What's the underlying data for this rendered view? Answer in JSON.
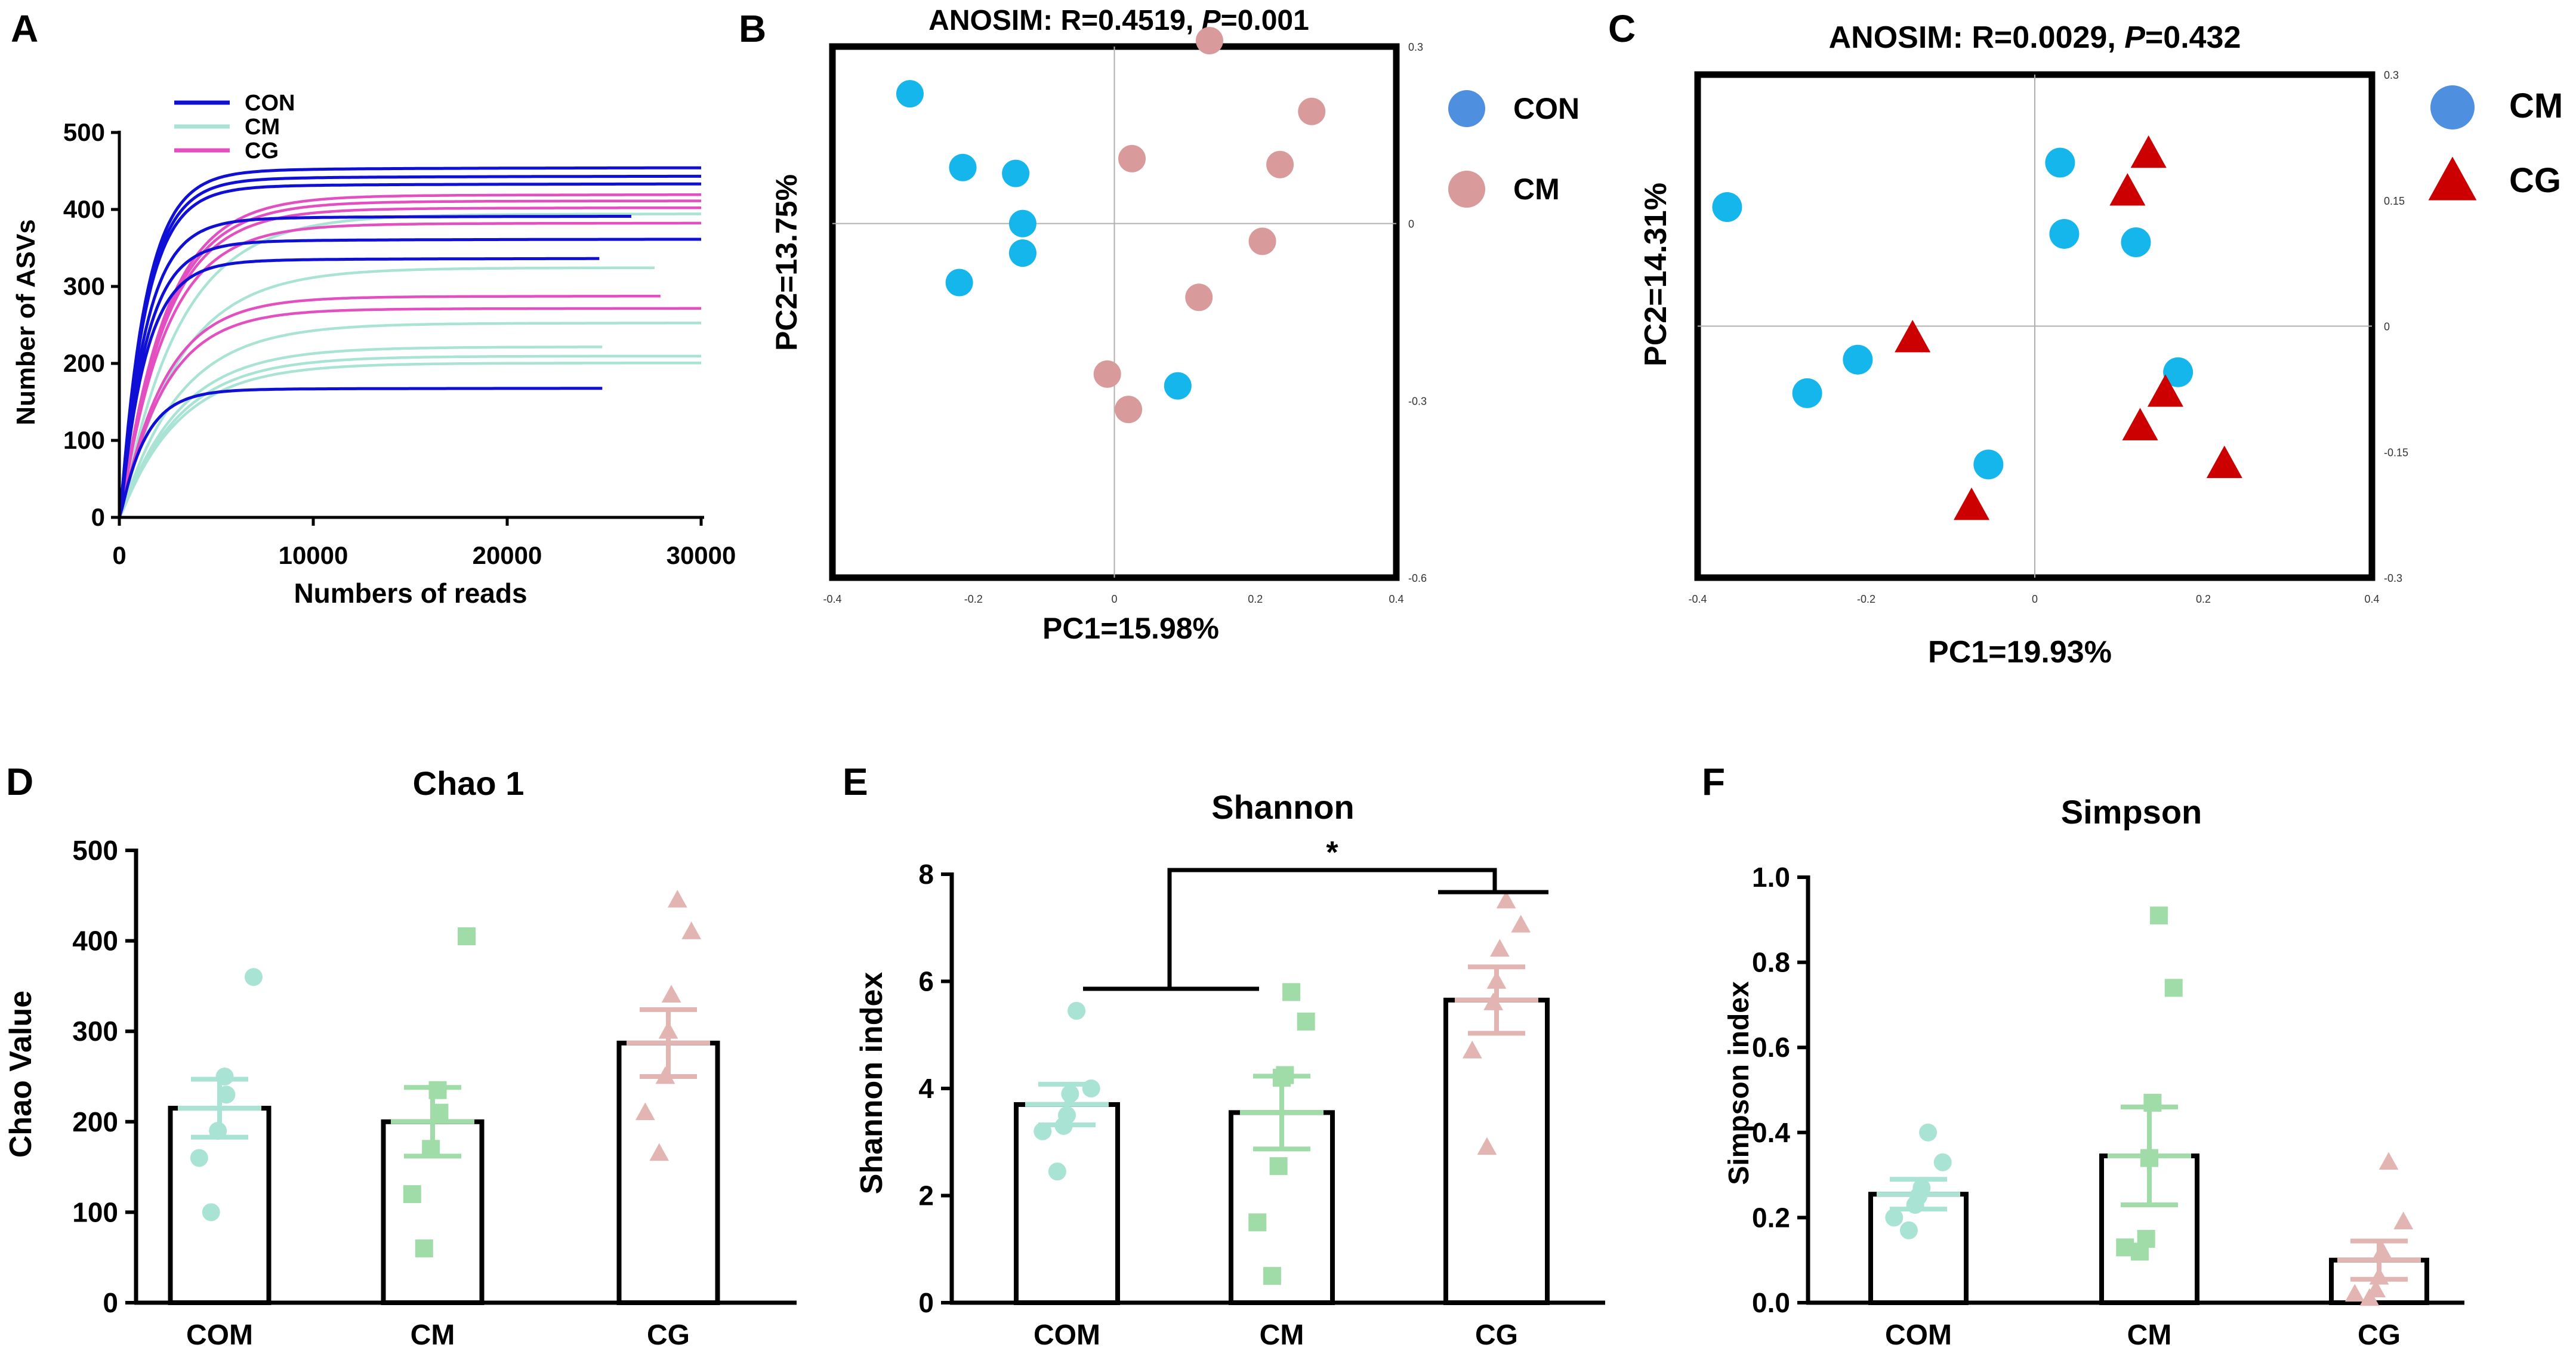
{
  "colors": {
    "con": "#0f0fd6",
    "cm_line": "#a9e3d3",
    "cg": "#e34fc0",
    "blue_pt": "#14b6ec",
    "pink_pt": "#d89a9a",
    "legend_blue": "#4f8fe0",
    "red_tri": "#cc0000",
    "teal": "#a9e3d3",
    "green": "#9fdca8",
    "rose": "#e3b5b2",
    "sig": "#000000"
  },
  "chart_data": [
    {
      "panel": "A",
      "type": "line",
      "xlabel": "Numbers of reads",
      "ylabel": "Number of ASVs",
      "xlim": [
        0,
        30000
      ],
      "ylim": [
        0,
        500
      ],
      "xticks": [
        "0",
        "10000",
        "20000",
        "30000"
      ],
      "yticks": [
        "0",
        "100",
        "200",
        "300",
        "400",
        "500"
      ],
      "legend": [
        {
          "name": "CON",
          "color": "con"
        },
        {
          "name": "CM",
          "color": "cm_line"
        },
        {
          "name": "CG",
          "color": "cg"
        }
      ],
      "series": [
        {
          "group": "CM",
          "color": "cm_line",
          "x_end": 30000,
          "asymptote": 395
        },
        {
          "group": "CM",
          "color": "cm_line",
          "x_end": 27700,
          "asymptote": 325
        },
        {
          "group": "CM",
          "color": "cm_line",
          "x_end": 30000,
          "asymptote": 253
        },
        {
          "group": "CM",
          "color": "cm_line",
          "x_end": 25000,
          "asymptote": 222
        },
        {
          "group": "CM",
          "color": "cm_line",
          "x_end": 30000,
          "asymptote": 210
        },
        {
          "group": "CM",
          "color": "cm_line",
          "x_end": 30000,
          "asymptote": 201
        },
        {
          "group": "CG",
          "color": "cg",
          "x_end": 30000,
          "asymptote": 420
        },
        {
          "group": "CG",
          "color": "cg",
          "x_end": 30000,
          "asymptote": 412
        },
        {
          "group": "CG",
          "color": "cg",
          "x_end": 30000,
          "asymptote": 403
        },
        {
          "group": "CG",
          "color": "cg",
          "x_end": 30000,
          "asymptote": 383
        },
        {
          "group": "CG",
          "color": "cg",
          "x_end": 28000,
          "asymptote": 288
        },
        {
          "group": "CG",
          "color": "cg",
          "x_end": 30000,
          "asymptote": 272
        },
        {
          "group": "CON",
          "color": "con",
          "x_end": 30000,
          "asymptote": 455
        },
        {
          "group": "CON",
          "color": "con",
          "x_end": 30000,
          "asymptote": 444
        },
        {
          "group": "CON",
          "color": "con",
          "x_end": 30000,
          "asymptote": 434
        },
        {
          "group": "CON",
          "color": "con",
          "x_end": 26500,
          "asymptote": 392
        },
        {
          "group": "CON",
          "color": "con",
          "x_end": 30000,
          "asymptote": 362
        },
        {
          "group": "CON",
          "color": "con",
          "x_end": 24800,
          "asymptote": 337
        },
        {
          "group": "CON",
          "color": "con",
          "x_end": 25000,
          "asymptote": 168
        }
      ]
    },
    {
      "panel": "B",
      "type": "scatter",
      "title_prefix": "ANOSIM: R=0.4519, ",
      "title_p": "P",
      "title_suffix": "=0.001",
      "xlabel": "PC1=15.98%",
      "ylabel": "PC2=13.75%",
      "xlim": [
        -0.4,
        0.4
      ],
      "ylim": [
        -0.6,
        0.3
      ],
      "xticks": [
        "-0.4",
        "-0.2",
        "0",
        "0.2",
        "0.4"
      ],
      "yticks": [
        "0.3",
        "0",
        "-0.3",
        "-0.6"
      ],
      "legend": [
        {
          "name": "CON",
          "color": "legend_blue"
        },
        {
          "name": "CM",
          "color": "pink_pt"
        }
      ],
      "series": [
        {
          "name": "CON",
          "color": "blue_pt",
          "points": [
            [
              -0.29,
              0.22
            ],
            [
              -0.215,
              0.095
            ],
            [
              -0.14,
              0.085
            ],
            [
              -0.13,
              0.0
            ],
            [
              -0.13,
              -0.05
            ],
            [
              -0.22,
              -0.1
            ],
            [
              0.09,
              -0.275
            ]
          ]
        },
        {
          "name": "CM",
          "color": "pink_pt",
          "points": [
            [
              0.135,
              0.31
            ],
            [
              0.28,
              0.19
            ],
            [
              0.025,
              0.11
            ],
            [
              0.235,
              0.1
            ],
            [
              0.21,
              -0.03
            ],
            [
              0.12,
              -0.125
            ],
            [
              -0.01,
              -0.255
            ],
            [
              0.02,
              -0.315
            ]
          ]
        }
      ]
    },
    {
      "panel": "C",
      "type": "scatter",
      "title_prefix": "ANOSIM: R=0.0029, ",
      "title_p": "P",
      "title_suffix": "=0.432",
      "xlabel": "PC1=19.93%",
      "ylabel": "PC2=14.31%",
      "xlim": [
        -0.4,
        0.4
      ],
      "ylim": [
        -0.3,
        0.3
      ],
      "xticks": [
        "-0.4",
        "-0.2",
        "0",
        "0.2",
        "0.4"
      ],
      "yticks": [
        "0.3",
        "0.15",
        "0",
        "-0.15",
        "-0.3"
      ],
      "legend": [
        {
          "name": "CM",
          "color": "legend_blue"
        },
        {
          "name": "CG",
          "color": "red_tri"
        }
      ],
      "series": [
        {
          "name": "CM",
          "marker": "circle",
          "color": "blue_pt",
          "points": [
            [
              -0.365,
              0.142
            ],
            [
              0.03,
              0.195
            ],
            [
              0.035,
              0.11
            ],
            [
              0.12,
              0.1
            ],
            [
              -0.21,
              -0.04
            ],
            [
              -0.27,
              -0.08
            ],
            [
              0.17,
              -0.055
            ],
            [
              -0.055,
              -0.165
            ]
          ]
        },
        {
          "name": "CG",
          "marker": "triangle",
          "color": "red_tri",
          "points": [
            [
              0.135,
              0.205
            ],
            [
              0.11,
              0.16
            ],
            [
              -0.145,
              -0.015
            ],
            [
              0.155,
              -0.08
            ],
            [
              0.125,
              -0.12
            ],
            [
              0.225,
              -0.165
            ],
            [
              -0.075,
              -0.215
            ]
          ]
        }
      ]
    },
    {
      "panel": "D",
      "type": "bar",
      "title": "Chao 1",
      "ylabel": "Chao Value",
      "categories": [
        "COM",
        "CM",
        "CG"
      ],
      "ylim": [
        0,
        500
      ],
      "yticks": [
        "0",
        "100",
        "200",
        "300",
        "400",
        "500"
      ],
      "values": [
        215,
        200,
        287
      ],
      "sem": [
        32,
        38,
        37
      ],
      "points": [
        [
          100,
          160,
          190,
          230,
          250,
          360
        ],
        [
          60,
          120,
          170,
          210,
          235,
          405
        ],
        [
          165,
          210,
          250,
          300,
          340,
          410,
          445
        ]
      ],
      "markers": [
        "circle",
        "square",
        "triangle"
      ],
      "colors": [
        "teal",
        "green",
        "rose"
      ]
    },
    {
      "panel": "E",
      "type": "bar",
      "title": "Shannon",
      "ylabel": "Shannon index",
      "categories": [
        "COM",
        "CM",
        "CG"
      ],
      "ylim": [
        0,
        8
      ],
      "yticks": [
        "0",
        "2",
        "4",
        "6",
        "8"
      ],
      "values": [
        3.7,
        3.55,
        5.65
      ],
      "sem": [
        0.38,
        0.68,
        0.62
      ],
      "points": [
        [
          2.45,
          3.2,
          3.3,
          3.5,
          3.9,
          4.0,
          5.45
        ],
        [
          0.5,
          1.5,
          2.55,
          4.2,
          4.25,
          5.25,
          5.8
        ],
        [
          2.9,
          4.7,
          5.6,
          6.0,
          6.6,
          7.05,
          7.5
        ]
      ],
      "markers": [
        "circle",
        "square",
        "triangle"
      ],
      "colors": [
        "teal",
        "green",
        "rose"
      ],
      "significance": "*"
    },
    {
      "panel": "F",
      "type": "bar",
      "title": "Simpson",
      "ylabel": "Simpson index",
      "categories": [
        "COM",
        "CM",
        "CG"
      ],
      "ylim": [
        0,
        1.0
      ],
      "yticks": [
        "0.0",
        "0.2",
        "0.4",
        "0.6",
        "0.8",
        "1.0"
      ],
      "values": [
        0.255,
        0.345,
        0.1
      ],
      "sem": [
        0.035,
        0.115,
        0.045
      ],
      "points": [
        [
          0.17,
          0.2,
          0.23,
          0.25,
          0.27,
          0.33,
          0.4
        ],
        [
          0.12,
          0.13,
          0.15,
          0.34,
          0.47,
          0.74,
          0.91
        ],
        [
          0.01,
          0.02,
          0.03,
          0.06,
          0.12,
          0.19,
          0.33
        ]
      ],
      "markers": [
        "circle",
        "square",
        "triangle"
      ],
      "colors": [
        "teal",
        "green",
        "rose"
      ]
    }
  ]
}
